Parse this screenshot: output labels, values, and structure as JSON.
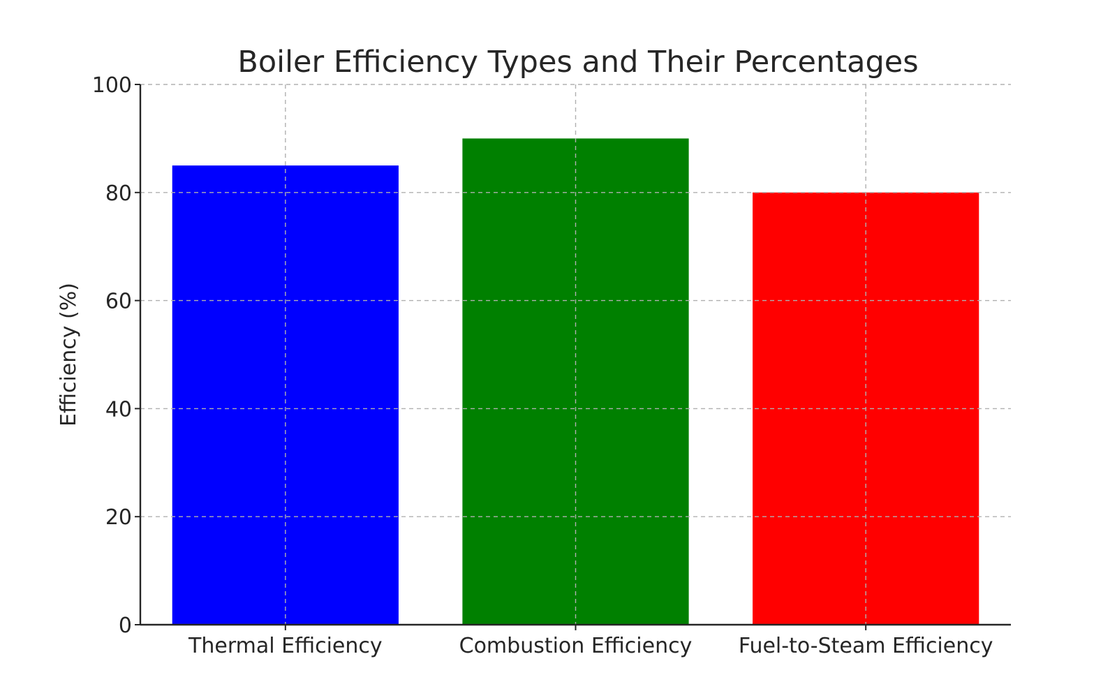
{
  "chart_data": {
    "type": "bar",
    "title": "Boiler Efficiency Types and Their Percentages",
    "xlabel": "",
    "ylabel": "Efficiency (%)",
    "categories": [
      "Thermal Efficiency",
      "Combustion Efficiency",
      "Fuel-to-Steam Efficiency"
    ],
    "values": [
      85,
      90,
      80
    ],
    "colors": [
      "#0000ff",
      "#008000",
      "#ff0000"
    ],
    "ylim": [
      0,
      100
    ],
    "yticks": [
      "0",
      "20",
      "40",
      "60",
      "80",
      "100"
    ],
    "grid": true,
    "legend": "none"
  }
}
